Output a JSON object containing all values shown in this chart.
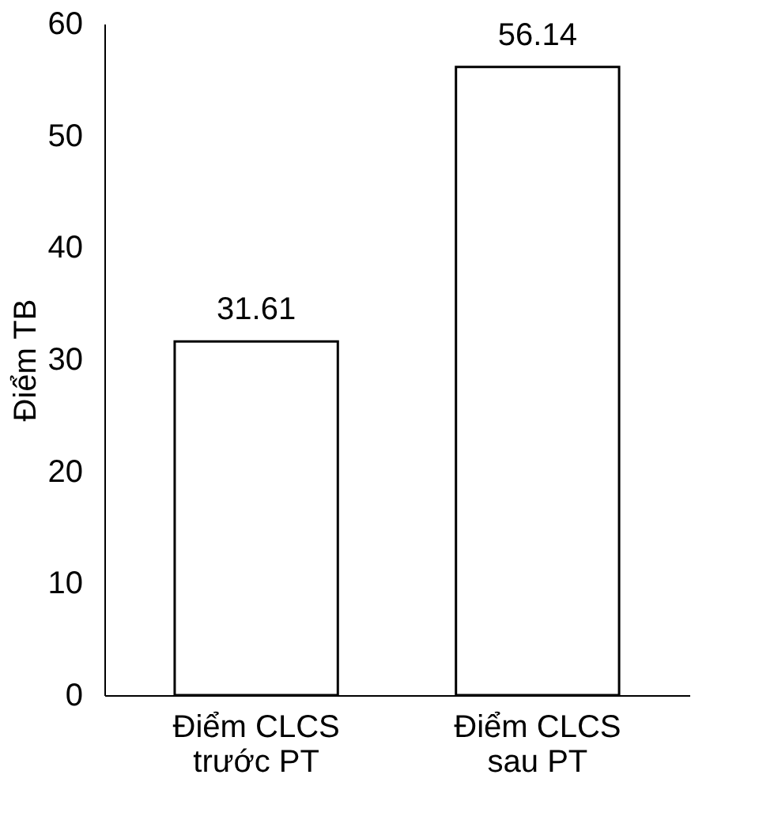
{
  "chart_data": {
    "type": "bar",
    "ylabel": "Điểm TB",
    "categories": [
      "Điểm CLCS\ntrước PT",
      "Điểm CLCS\nsau PT"
    ],
    "values": [
      31.61,
      56.14
    ],
    "color": "#ffffff",
    "ylim": [
      0,
      60
    ],
    "yticks": [
      0,
      10,
      20,
      30,
      40,
      50,
      60
    ],
    "grid": false,
    "data_labels": true
  }
}
